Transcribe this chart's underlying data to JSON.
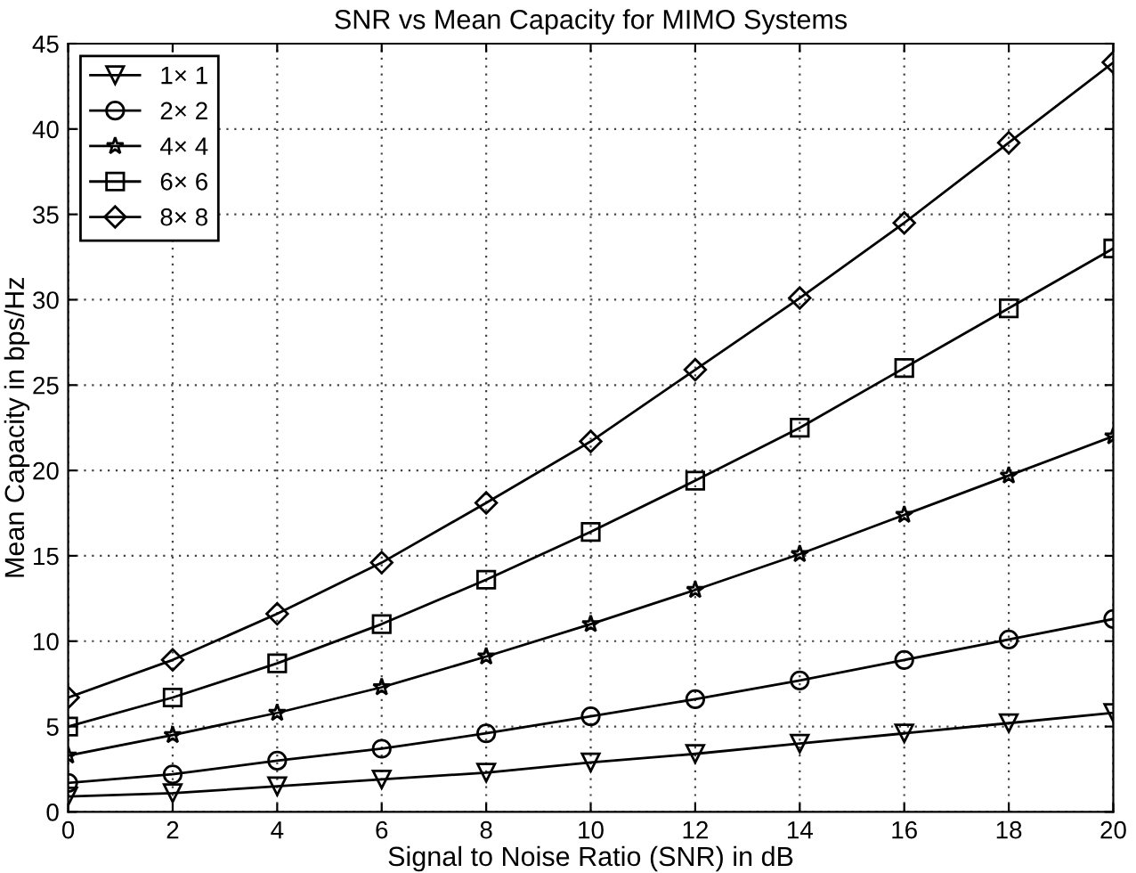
{
  "chart_data": {
    "type": "line",
    "title": "SNR vs Mean Capacity for MIMO Systems",
    "xlabel": "Signal to Noise Ratio (SNR) in dB",
    "ylabel": "Mean Capacity in bps/Hz",
    "x": [
      0,
      2,
      4,
      6,
      8,
      10,
      12,
      14,
      16,
      18,
      20
    ],
    "series": [
      {
        "name": "1× 1",
        "color": "#000000",
        "marker": "triangle",
        "values": [
          0.9,
          1.1,
          1.5,
          1.9,
          2.3,
          2.9,
          3.4,
          4.0,
          4.6,
          5.2,
          5.8
        ]
      },
      {
        "name": "2× 2",
        "color": "#000000",
        "marker": "circle",
        "values": [
          1.7,
          2.2,
          3.0,
          3.7,
          4.6,
          5.6,
          6.6,
          7.7,
          8.9,
          10.1,
          11.3
        ]
      },
      {
        "name": "4× 4",
        "color": "#000000",
        "marker": "star",
        "values": [
          3.3,
          4.5,
          5.8,
          7.3,
          9.1,
          11.0,
          13.0,
          15.1,
          17.4,
          19.7,
          22.0
        ]
      },
      {
        "name": "6× 6",
        "color": "#000000",
        "marker": "square",
        "values": [
          5.0,
          6.7,
          8.7,
          11.0,
          13.6,
          16.4,
          19.4,
          22.5,
          26.0,
          29.5,
          33.0
        ]
      },
      {
        "name": "8× 8",
        "color": "#000000",
        "marker": "diamond",
        "values": [
          6.7,
          8.9,
          11.6,
          14.6,
          18.1,
          21.7,
          25.9,
          30.1,
          34.5,
          39.2,
          43.9
        ]
      }
    ],
    "xlim": [
      0,
      20
    ],
    "xticks": [
      0,
      2,
      4,
      6,
      8,
      10,
      12,
      14,
      16,
      18,
      20
    ],
    "ylim": [
      0,
      45
    ],
    "yticks": [
      0,
      5,
      10,
      15,
      20,
      25,
      30,
      35,
      40,
      45
    ],
    "grid": true,
    "legend": "top left",
    "line_style": "solid"
  }
}
